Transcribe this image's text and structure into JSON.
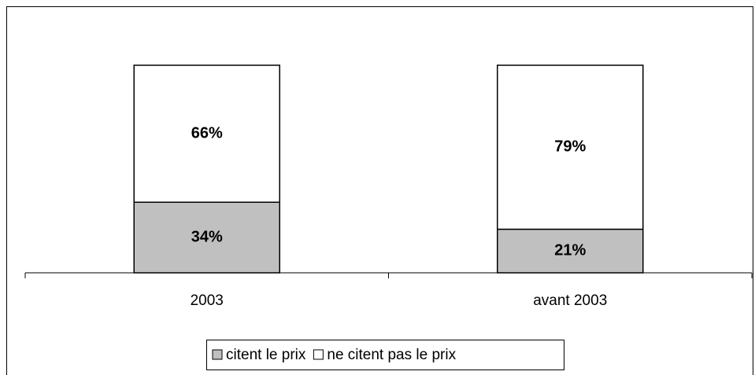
{
  "chart_data": {
    "type": "bar",
    "stacked": "percent",
    "categories": [
      "2003",
      "avant 2003"
    ],
    "series": [
      {
        "name": "citent le prix",
        "color": "#c0c0c0",
        "values": [
          34,
          21
        ],
        "value_labels": [
          "34%",
          "21%"
        ]
      },
      {
        "name": "ne citent pas le prix",
        "color": "#ffffff",
        "values": [
          66,
          79
        ],
        "value_labels": [
          "66%",
          "79%"
        ]
      }
    ],
    "legend": "bottom"
  }
}
